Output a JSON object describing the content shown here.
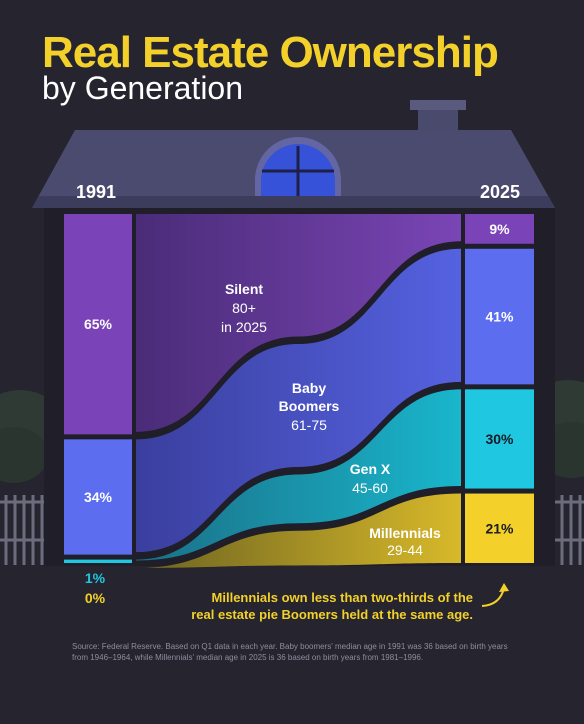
{
  "title": "Real Estate Ownership",
  "subtitle": "by Generation",
  "source": "Source: Federal Reserve. Based on Q1 data in each year. Baby boomers' median age in 1991 was 36 based on birth years from 1946–1964, while Millennials' median age in 2025 is 36 based on birth years from 1981–1996.",
  "annotation": "Millennials own less than two-thirds of the real estate pie Boomers held at the same age.",
  "colors": {
    "silent": "#7b43b8",
    "boomers": "#5c6df0",
    "genx": "#1fc8e0",
    "millennials": "#f3d12a",
    "accent": "#f3d12a"
  },
  "chart_data": {
    "type": "area",
    "x": [
      "1991",
      "2025"
    ],
    "series": [
      {
        "name": "Silent",
        "sublabel": "80+",
        "sublabel2": "in 2025",
        "values": [
          65,
          9
        ],
        "labels": [
          "65%",
          "9%"
        ]
      },
      {
        "name": "Baby Boomers",
        "name_line1": "Baby",
        "name_line2": "Boomers",
        "sublabel": "61-75",
        "values": [
          34,
          41
        ],
        "labels": [
          "34%",
          "41%"
        ]
      },
      {
        "name": "Gen X",
        "sublabel": "45-60",
        "values": [
          1,
          30
        ],
        "labels": [
          "1%",
          "30%"
        ]
      },
      {
        "name": "Millennials",
        "sublabel": "29-44",
        "values": [
          0,
          21
        ],
        "labels": [
          "0%",
          "21%"
        ]
      }
    ],
    "ylim": [
      0,
      100
    ]
  }
}
